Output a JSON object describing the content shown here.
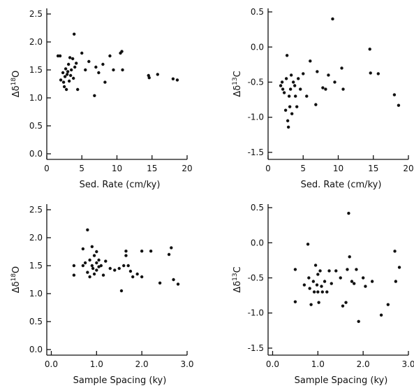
{
  "chart_data": [
    {
      "type": "scatter",
      "xlabel": "Sed. Rate (cm/ky)",
      "ylabel_main": "Δδ",
      "ylabel_sup": "18",
      "ylabel_tail": "O",
      "xlim": [
        0,
        20
      ],
      "ylim": [
        -0.1,
        2.6
      ],
      "xticks": [
        "0",
        "5",
        "10",
        "15",
        "20"
      ],
      "xtick_values": [
        0,
        5,
        10,
        15,
        20
      ],
      "yticks": [
        "0.0",
        "0.5",
        "1.0",
        "1.5",
        "2.0",
        "2.5"
      ],
      "ytick_values": [
        0,
        0.5,
        1.0,
        1.5,
        2.0,
        2.5
      ],
      "points": [
        [
          1.6,
          1.75
        ],
        [
          1.9,
          1.75
        ],
        [
          2.0,
          1.32
        ],
        [
          2.3,
          1.45
        ],
        [
          2.4,
          1.28
        ],
        [
          2.5,
          1.2
        ],
        [
          2.6,
          1.38
        ],
        [
          2.7,
          1.52
        ],
        [
          2.8,
          1.15
        ],
        [
          2.9,
          1.42
        ],
        [
          3.0,
          1.47
        ],
        [
          3.1,
          1.6
        ],
        [
          3.2,
          1.3
        ],
        [
          3.3,
          1.72
        ],
        [
          3.4,
          1.4
        ],
        [
          3.5,
          1.5
        ],
        [
          3.7,
          1.7
        ],
        [
          3.8,
          1.35
        ],
        [
          3.9,
          2.14
        ],
        [
          4.0,
          1.55
        ],
        [
          4.2,
          1.62
        ],
        [
          4.4,
          1.15
        ],
        [
          5.0,
          1.8
        ],
        [
          5.5,
          1.5
        ],
        [
          6.0,
          1.65
        ],
        [
          6.8,
          1.04
        ],
        [
          7.0,
          1.55
        ],
        [
          7.4,
          1.45
        ],
        [
          8.0,
          1.6
        ],
        [
          8.3,
          1.28
        ],
        [
          9.0,
          1.75
        ],
        [
          9.5,
          1.5
        ],
        [
          10.5,
          1.8
        ],
        [
          10.7,
          1.83
        ],
        [
          10.8,
          1.5
        ],
        [
          14.5,
          1.4
        ],
        [
          14.6,
          1.36
        ],
        [
          15.8,
          1.42
        ],
        [
          18.0,
          1.34
        ],
        [
          18.6,
          1.32
        ]
      ]
    },
    {
      "type": "scatter",
      "xlabel": "Sed. Rate (cm/ky)",
      "ylabel_main": "Δδ",
      "ylabel_sup": "13",
      "ylabel_tail": "C",
      "xlim": [
        0,
        20
      ],
      "ylim": [
        -1.6,
        0.55
      ],
      "xticks": [
        "0",
        "5",
        "10",
        "15",
        "20"
      ],
      "xtick_values": [
        0,
        5,
        10,
        15,
        20
      ],
      "yticks": [
        "-1.5",
        "-1.0",
        "-0.5",
        "0.0",
        "0.5"
      ],
      "ytick_values": [
        -1.5,
        -1.0,
        -0.5,
        0.0,
        0.5
      ],
      "points": [
        [
          1.8,
          -0.55
        ],
        [
          2.0,
          -0.5
        ],
        [
          2.1,
          -0.6
        ],
        [
          2.3,
          -0.65
        ],
        [
          2.5,
          -0.9
        ],
        [
          2.6,
          -0.45
        ],
        [
          2.7,
          -0.12
        ],
        [
          2.8,
          -1.05
        ],
        [
          2.9,
          -1.14
        ],
        [
          3.0,
          -0.7
        ],
        [
          3.1,
          -0.85
        ],
        [
          3.2,
          -0.6
        ],
        [
          3.3,
          -0.4
        ],
        [
          3.4,
          -0.95
        ],
        [
          3.6,
          -0.5
        ],
        [
          3.8,
          -0.55
        ],
        [
          3.9,
          -0.7
        ],
        [
          4.1,
          -0.85
        ],
        [
          4.3,
          -0.45
        ],
        [
          4.6,
          -0.6
        ],
        [
          5.0,
          -0.38
        ],
        [
          5.5,
          -0.7
        ],
        [
          6.0,
          -0.2
        ],
        [
          6.8,
          -0.82
        ],
        [
          7.0,
          -0.35
        ],
        [
          7.8,
          -0.58
        ],
        [
          8.2,
          -0.6
        ],
        [
          8.6,
          -0.4
        ],
        [
          9.2,
          0.4
        ],
        [
          9.5,
          -0.5
        ],
        [
          10.5,
          -0.3
        ],
        [
          10.7,
          -0.6
        ],
        [
          14.5,
          -0.03
        ],
        [
          14.6,
          -0.37
        ],
        [
          15.7,
          -0.38
        ],
        [
          18.0,
          -0.68
        ],
        [
          18.6,
          -0.83
        ]
      ]
    },
    {
      "type": "scatter",
      "xlabel": "Sample Spacing (ky)",
      "ylabel_main": "Δδ",
      "ylabel_sup": "18",
      "ylabel_tail": "O",
      "xlim": [
        -0.1,
        3.0
      ],
      "ylim": [
        -0.1,
        2.6
      ],
      "xticks": [
        "0.0",
        "1.0",
        "2.0",
        "3.0"
      ],
      "xtick_values": [
        0,
        1.0,
        2.0,
        3.0
      ],
      "yticks": [
        "0.0",
        "0.5",
        "1.0",
        "1.5",
        "2.0",
        "2.5"
      ],
      "ytick_values": [
        0,
        0.5,
        1.0,
        1.5,
        2.0,
        2.5
      ],
      "points": [
        [
          0.5,
          1.5
        ],
        [
          0.5,
          1.33
        ],
        [
          0.7,
          1.8
        ],
        [
          0.7,
          1.5
        ],
        [
          0.75,
          1.55
        ],
        [
          0.8,
          2.14
        ],
        [
          0.8,
          1.38
        ],
        [
          0.85,
          1.6
        ],
        [
          0.85,
          1.3
        ],
        [
          0.9,
          1.84
        ],
        [
          0.9,
          1.5
        ],
        [
          0.92,
          1.45
        ],
        [
          0.95,
          1.68
        ],
        [
          0.95,
          1.35
        ],
        [
          1.0,
          1.75
        ],
        [
          1.0,
          1.55
        ],
        [
          1.0,
          1.42
        ],
        [
          1.05,
          1.6
        ],
        [
          1.05,
          1.48
        ],
        [
          1.1,
          1.5
        ],
        [
          1.15,
          1.33
        ],
        [
          1.2,
          1.58
        ],
        [
          1.3,
          1.45
        ],
        [
          1.4,
          1.42
        ],
        [
          1.5,
          1.45
        ],
        [
          1.55,
          1.05
        ],
        [
          1.6,
          1.5
        ],
        [
          1.65,
          1.76
        ],
        [
          1.65,
          1.68
        ],
        [
          1.7,
          1.5
        ],
        [
          1.75,
          1.4
        ],
        [
          1.8,
          1.3
        ],
        [
          1.9,
          1.35
        ],
        [
          2.0,
          1.3
        ],
        [
          2.0,
          1.76
        ],
        [
          2.2,
          1.76
        ],
        [
          2.4,
          1.19
        ],
        [
          2.6,
          1.7
        ],
        [
          2.65,
          1.82
        ],
        [
          2.7,
          1.25
        ],
        [
          2.8,
          1.17
        ]
      ]
    },
    {
      "type": "scatter",
      "xlabel": "Sample Spacing (ky)",
      "ylabel_main": "Δδ",
      "ylabel_sup": "13",
      "ylabel_tail": "C",
      "xlim": [
        -0.1,
        3.0
      ],
      "ylim": [
        -1.6,
        0.55
      ],
      "xticks": [
        "0.0",
        "1.0",
        "2.0",
        "3.0"
      ],
      "xtick_values": [
        0,
        1.0,
        2.0,
        3.0
      ],
      "yticks": [
        "-1.5",
        "-1.0",
        "-0.5",
        "0.0",
        "0.5"
      ],
      "ytick_values": [
        -1.5,
        -1.0,
        -0.5,
        0.0,
        0.5
      ],
      "points": [
        [
          0.5,
          -0.38
        ],
        [
          0.5,
          -0.84
        ],
        [
          0.7,
          -0.6
        ],
        [
          0.78,
          -0.02
        ],
        [
          0.8,
          -0.5
        ],
        [
          0.82,
          -0.65
        ],
        [
          0.85,
          -0.88
        ],
        [
          0.9,
          -0.55
        ],
        [
          0.92,
          -0.7
        ],
        [
          0.95,
          -0.32
        ],
        [
          0.98,
          -0.6
        ],
        [
          1.0,
          -0.45
        ],
        [
          1.0,
          -0.7
        ],
        [
          1.02,
          -0.85
        ],
        [
          1.05,
          -0.4
        ],
        [
          1.08,
          -0.62
        ],
        [
          1.1,
          -0.7
        ],
        [
          1.15,
          -0.55
        ],
        [
          1.2,
          -0.7
        ],
        [
          1.25,
          -0.4
        ],
        [
          1.3,
          -0.58
        ],
        [
          1.4,
          -0.4
        ],
        [
          1.5,
          -0.5
        ],
        [
          1.55,
          -0.9
        ],
        [
          1.62,
          -0.85
        ],
        [
          1.65,
          -0.38
        ],
        [
          1.68,
          0.42
        ],
        [
          1.7,
          -0.2
        ],
        [
          1.75,
          -0.55
        ],
        [
          1.8,
          -0.58
        ],
        [
          1.85,
          -0.38
        ],
        [
          1.9,
          -1.12
        ],
        [
          2.0,
          -0.5
        ],
        [
          2.05,
          -0.62
        ],
        [
          2.2,
          -0.55
        ],
        [
          2.4,
          -1.03
        ],
        [
          2.55,
          -0.88
        ],
        [
          2.7,
          -0.12
        ],
        [
          2.72,
          -0.55
        ],
        [
          2.8,
          -0.35
        ]
      ]
    }
  ]
}
